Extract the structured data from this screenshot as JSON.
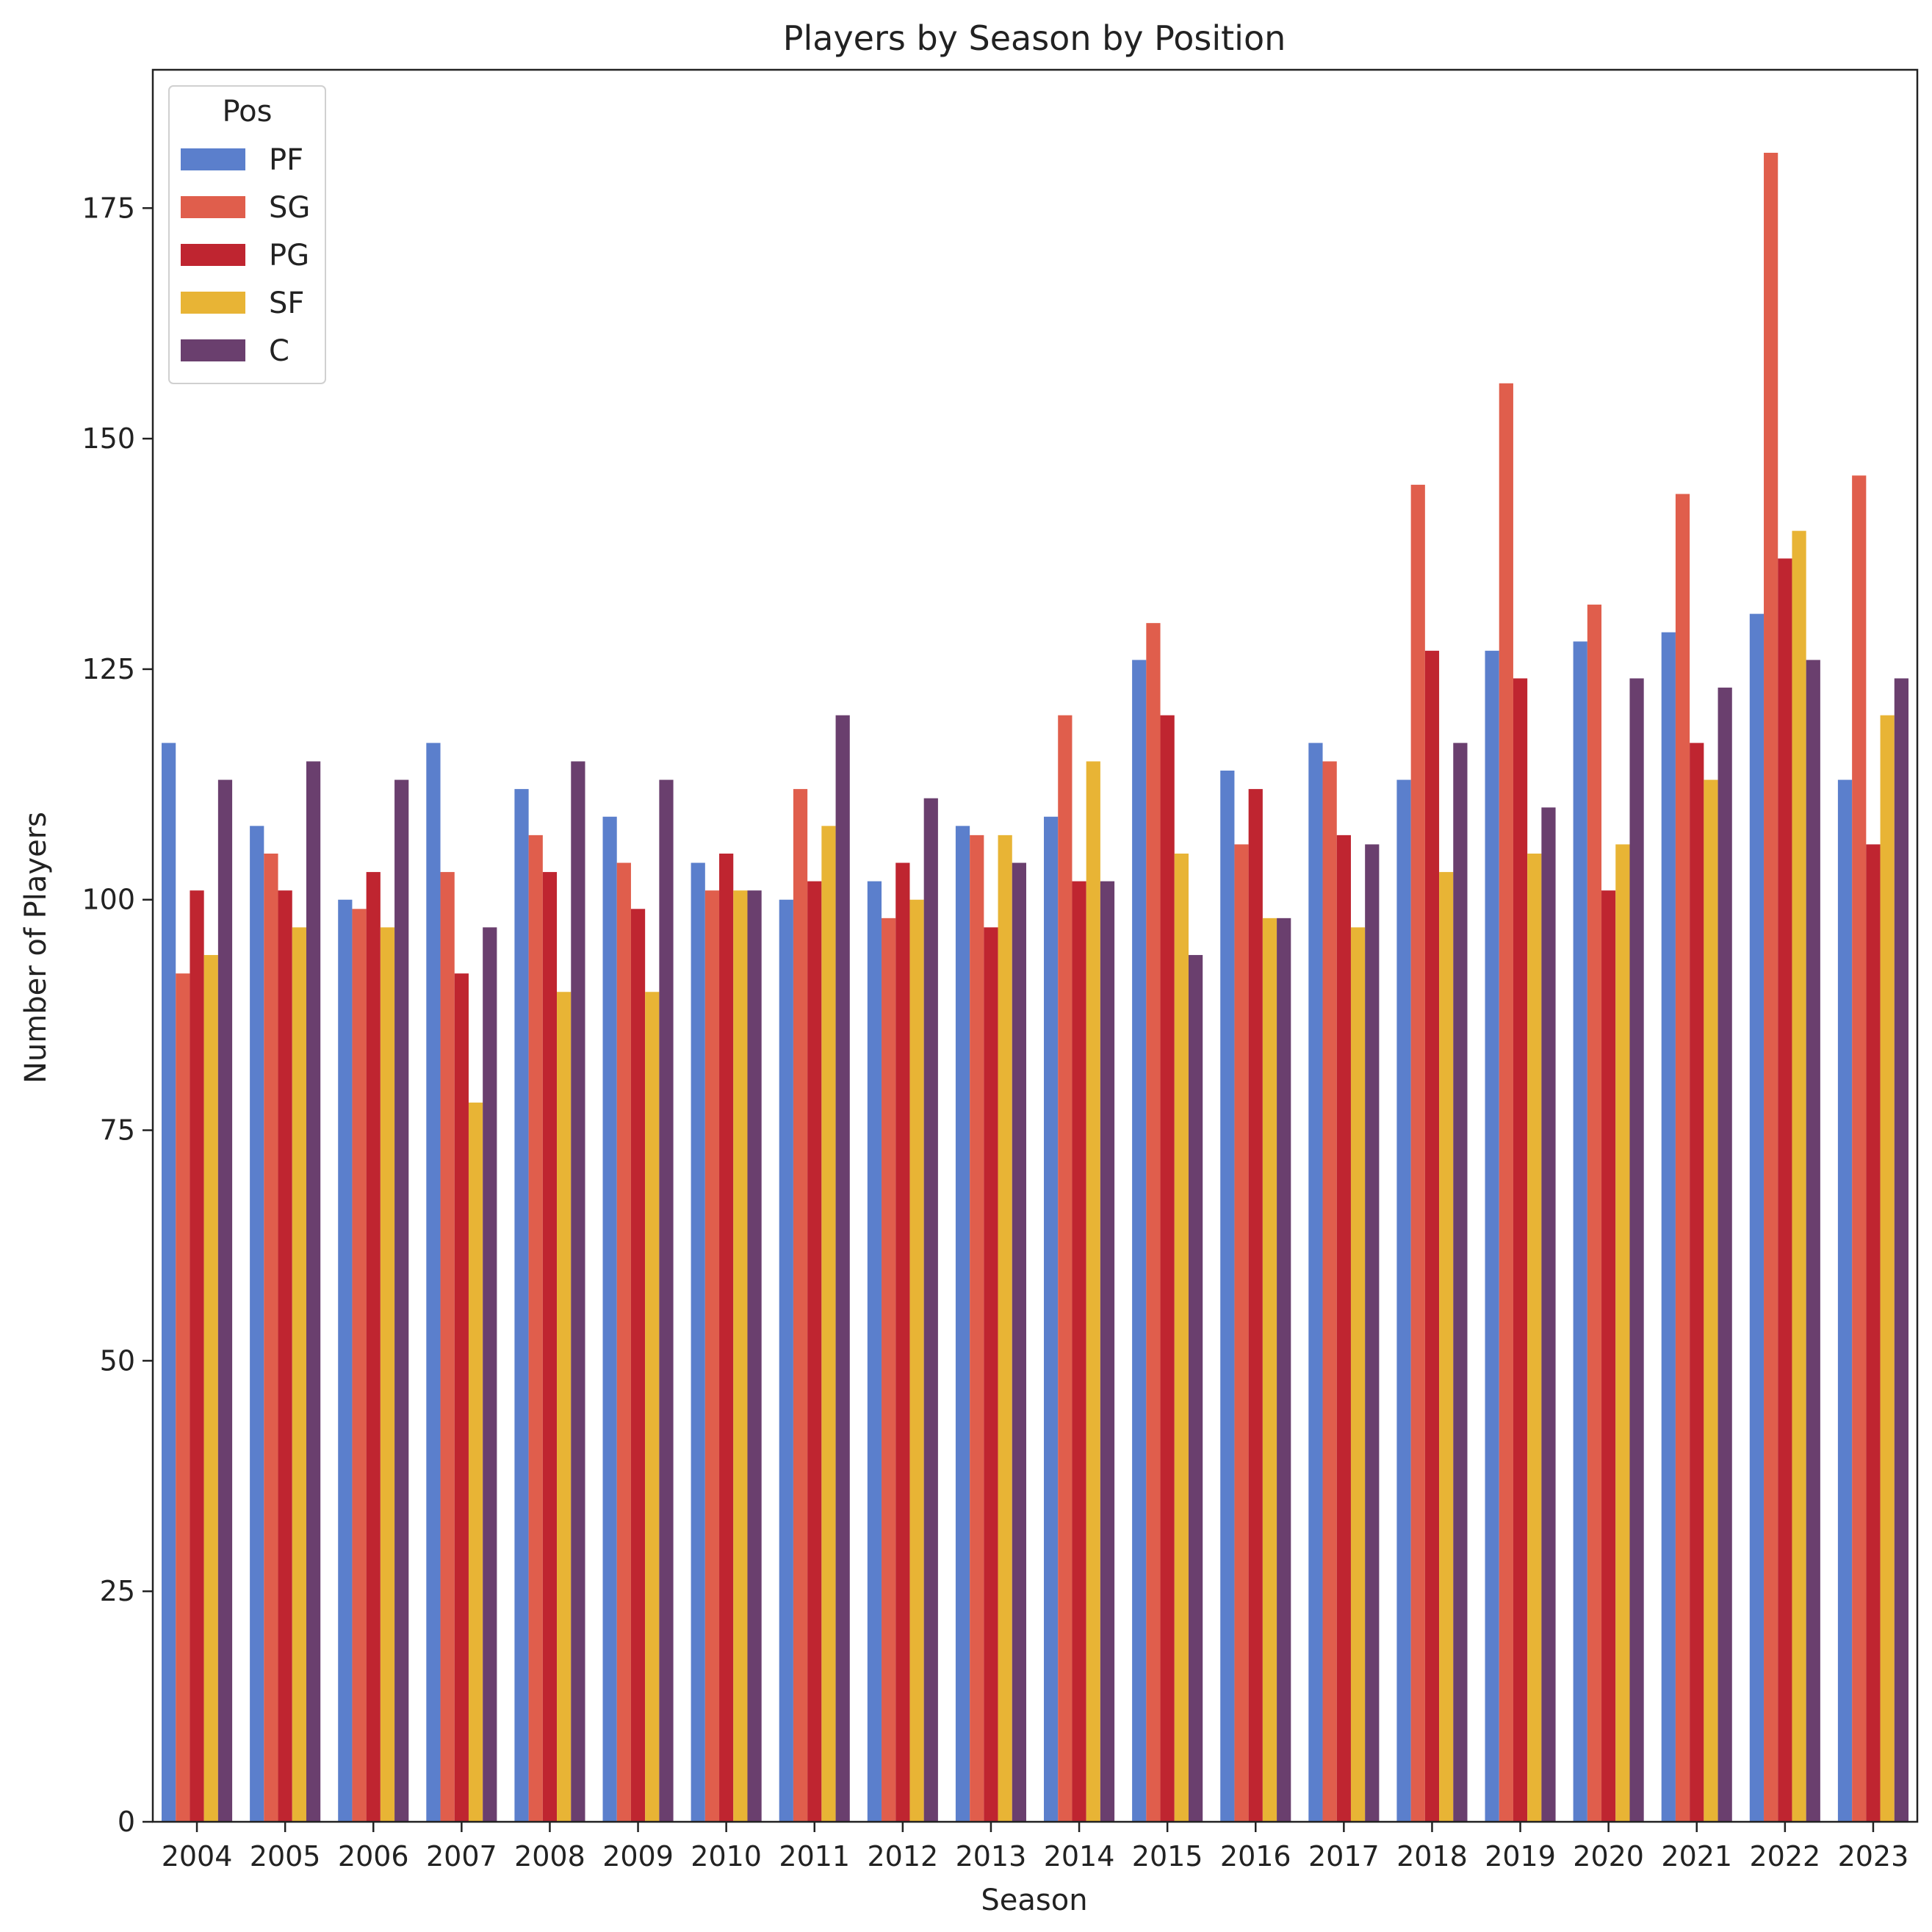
{
  "chart_data": {
    "type": "bar",
    "title": "Players by Season by Position",
    "xlabel": "Season",
    "ylabel": "Number of Players",
    "ylim": [
      0,
      190
    ],
    "yticks": [
      0,
      25,
      50,
      75,
      100,
      125,
      150,
      175
    ],
    "grid": false,
    "legend": {
      "title": "Pos",
      "placement": "top-left"
    },
    "categories": [
      "2004",
      "2005",
      "2006",
      "2007",
      "2008",
      "2009",
      "2010",
      "2011",
      "2012",
      "2013",
      "2014",
      "2015",
      "2016",
      "2017",
      "2018",
      "2019",
      "2020",
      "2021",
      "2022",
      "2023"
    ],
    "series": [
      {
        "name": "PF",
        "color": "#5b7fcc",
        "values": [
          117,
          108,
          100,
          117,
          112,
          109,
          104,
          100,
          102,
          108,
          109,
          126,
          114,
          117,
          113,
          127,
          128,
          129,
          131,
          113
        ]
      },
      {
        "name": "SG",
        "color": "#e05e4c",
        "values": [
          92,
          105,
          99,
          103,
          107,
          104,
          101,
          112,
          98,
          107,
          120,
          130,
          106,
          115,
          145,
          156,
          132,
          144,
          181,
          146
        ]
      },
      {
        "name": "PG",
        "color": "#bf2530",
        "values": [
          101,
          101,
          103,
          92,
          103,
          99,
          105,
          102,
          104,
          97,
          102,
          120,
          112,
          107,
          127,
          124,
          101,
          117,
          137,
          106
        ]
      },
      {
        "name": "SF",
        "color": "#e8b435",
        "values": [
          94,
          97,
          97,
          78,
          90,
          90,
          101,
          108,
          100,
          107,
          115,
          105,
          98,
          97,
          103,
          105,
          106,
          113,
          140,
          120
        ]
      },
      {
        "name": "C",
        "color": "#6a3f6e",
        "values": [
          113,
          115,
          113,
          97,
          115,
          113,
          101,
          120,
          111,
          104,
          102,
          94,
          98,
          106,
          117,
          110,
          124,
          123,
          126,
          124
        ]
      }
    ]
  }
}
